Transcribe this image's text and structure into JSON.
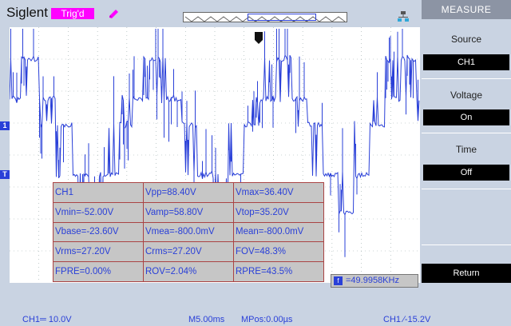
{
  "header": {
    "brand": "Siglent",
    "trigger_status": "Trig'd"
  },
  "measurements": {
    "rows": [
      [
        "CH1",
        "Vpp=88.40V",
        "Vmax=36.40V"
      ],
      [
        "Vmin=-52.00V",
        "Vamp=58.80V",
        "Vtop=35.20V"
      ],
      [
        "Vbase=-23.60V",
        "Vmea=-800.0mV",
        "Mean=-800.0mV"
      ],
      [
        "Vrms=27.20V",
        "Crms=27.20V",
        "FOV=48.3%"
      ],
      [
        "FPRE=0.00%",
        "ROV=2.04%",
        "RPRE=43.5%"
      ]
    ],
    "frequency": "=49.9958KHz"
  },
  "menu": {
    "title": "MEASURE",
    "source_label": "Source",
    "source_value": "CH1",
    "voltage_label": "Voltage",
    "voltage_value": "On",
    "time_label": "Time",
    "time_value": "Off",
    "return_label": "Return"
  },
  "status": {
    "ch1_scale": "CH1═ 10.0V",
    "timebase": "M5.00ms",
    "mpos": "MPos:0.00µs",
    "trigger": "CH1 ∕-15.2V"
  },
  "markers": {
    "channel": "1",
    "trigger_level": "T",
    "trigger_pos": "T",
    "freq_icon": "f"
  },
  "colors": {
    "trace": "#2a40d8",
    "trigger_badge": "#ff00ff"
  }
}
